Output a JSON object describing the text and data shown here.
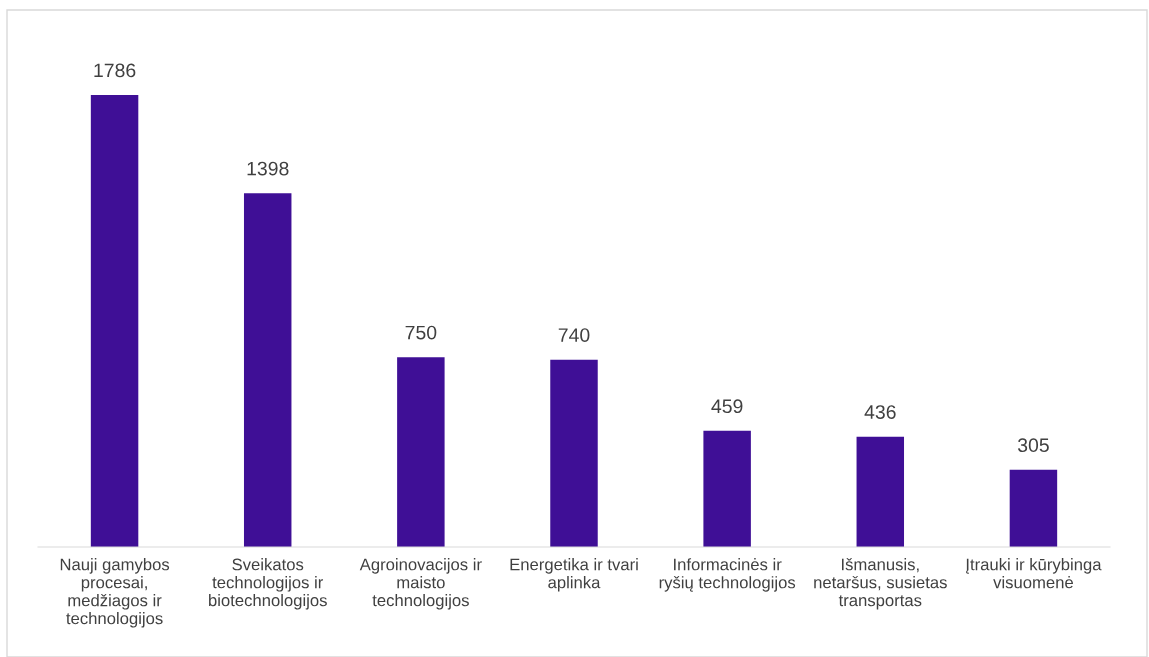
{
  "chart_data": {
    "type": "bar",
    "categories": [
      "Nauji gamybos\nprocesai,\nmedžiagos ir\ntechnologijos",
      "Sveikatos\ntechnologijos ir\nbiotechnologijos",
      "Agroinovacijos ir\nmaisto\ntechnologijos",
      "Energetika ir tvari\naplinka",
      "Informacinės ir\nryšių technologijos",
      "Išmanusis,\nnetaršus, susietas\ntransportas",
      "Įtrauki ir kūrybinga\nvisuomenė"
    ],
    "values": [
      1786,
      1398,
      750,
      740,
      459,
      436,
      305
    ],
    "color": "#3f0f96",
    "data_labels": true,
    "grid": false,
    "legend": false
  }
}
